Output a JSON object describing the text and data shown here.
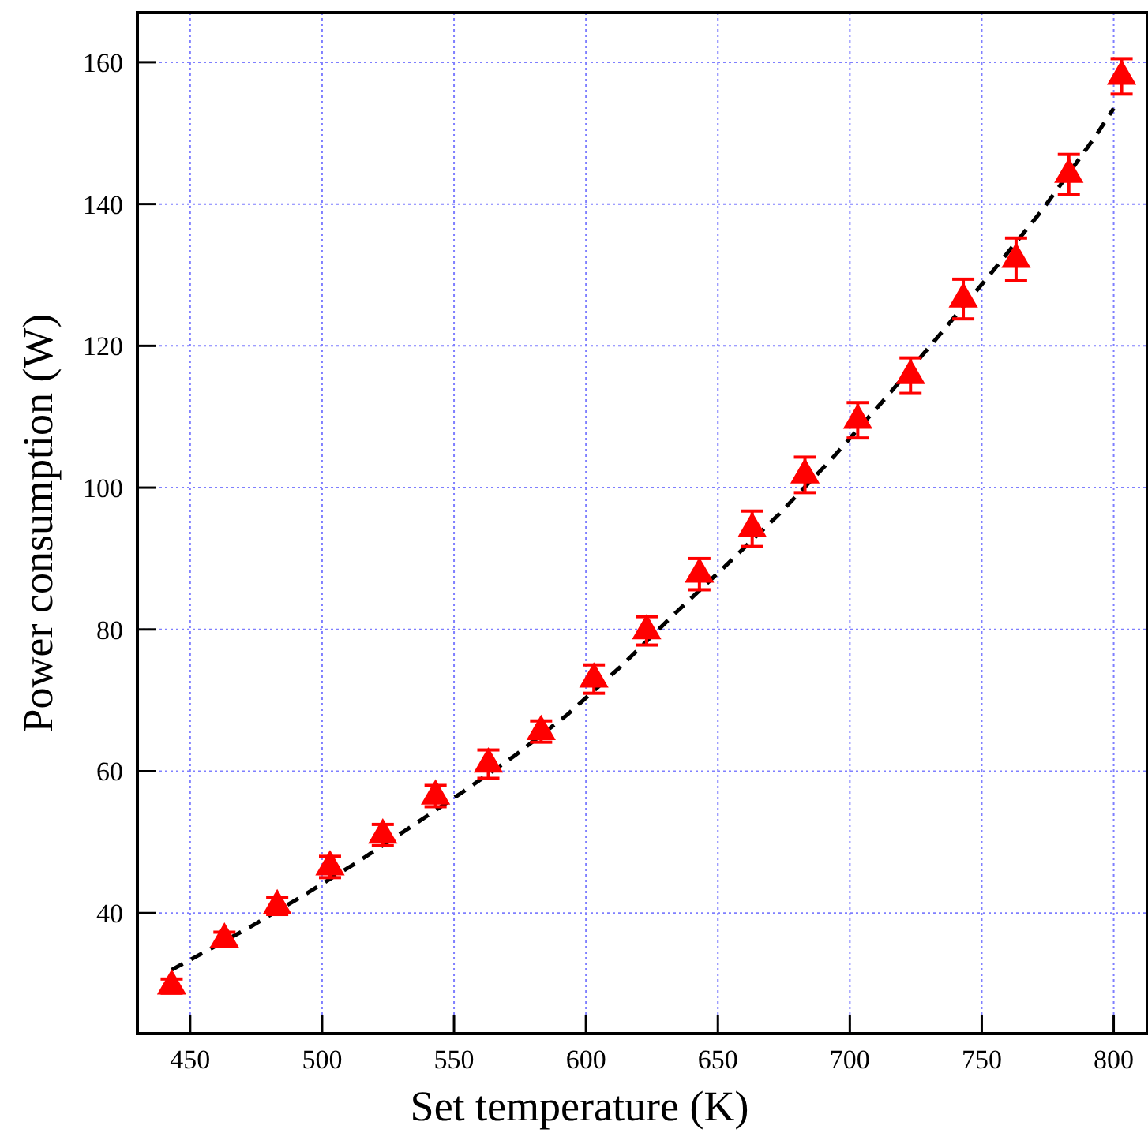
{
  "chart_data": {
    "type": "scatter",
    "xlabel": "Set temperature (K)",
    "ylabel": "Power consumption (W)",
    "xlim": [
      430,
      813
    ],
    "xticks": [
      450,
      500,
      550,
      600,
      650,
      700,
      750,
      800
    ],
    "ylim": [
      23,
      167
    ],
    "yticks": [
      40,
      60,
      80,
      100,
      120,
      140,
      160
    ],
    "grid": true,
    "series": [
      {
        "type": "line",
        "color": "#000000",
        "line_style": "dashed",
        "marker": "none",
        "x": [
          443,
          453,
          473,
          493,
          513,
          533,
          553,
          573,
          593,
          613,
          633,
          653,
          673,
          693,
          713,
          733,
          753,
          773,
          793,
          800
        ],
        "values": [
          32,
          34,
          38.1,
          42.5,
          47.1,
          52,
          57,
          62.2,
          68,
          74.7,
          82,
          89,
          96.2,
          104,
          112.4,
          121.1,
          130,
          139.2,
          149.5,
          153.5
        ]
      },
      {
        "type": "scatter",
        "color": "#ff0000",
        "marker": "triangle",
        "x": [
          443,
          463,
          483,
          503,
          523,
          543,
          563,
          583,
          603,
          623,
          643,
          663,
          683,
          703,
          723,
          743,
          763,
          783,
          803
        ],
        "values": [
          29.7,
          36.3,
          41,
          46.5,
          51,
          56.5,
          61,
          65.6,
          73,
          79.8,
          87.8,
          94.2,
          101.8,
          109.5,
          115.8,
          126.6,
          132.2,
          144.2,
          158
        ],
        "errors": [
          1,
          1,
          1.2,
          1.5,
          1.5,
          1.5,
          2,
          1.5,
          2,
          2,
          2.2,
          2.5,
          2.5,
          2.5,
          2.5,
          2.8,
          3,
          2.8,
          2.5
        ]
      }
    ]
  }
}
